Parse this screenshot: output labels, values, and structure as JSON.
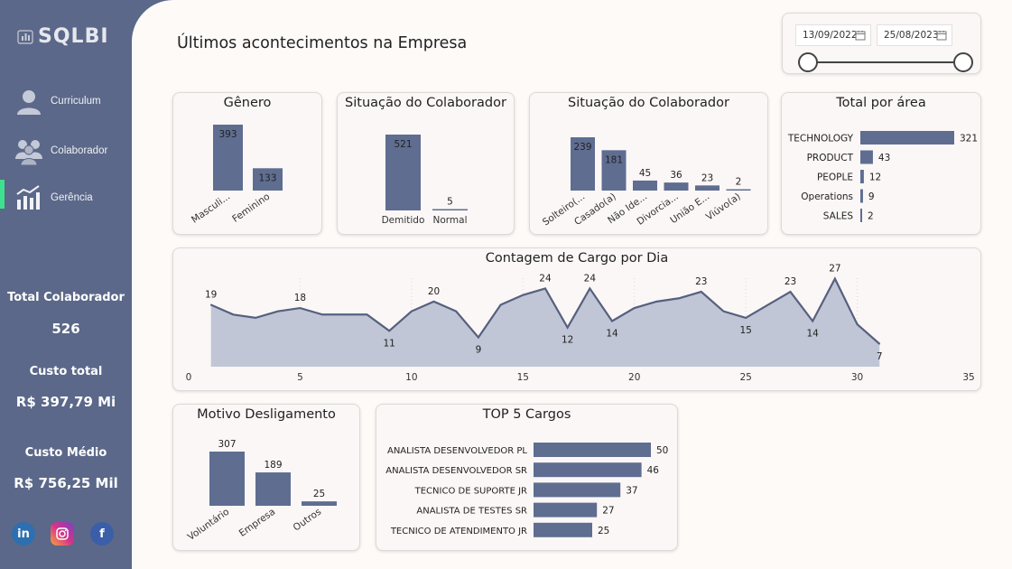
{
  "sidebar": {
    "logo": "SQLBI",
    "nav": [
      {
        "label": "Curriculum",
        "icon": "person-icon"
      },
      {
        "label": "Colaborador",
        "icon": "people-group-icon"
      },
      {
        "label": "Gerência",
        "icon": "bar-chart-icon"
      }
    ],
    "kpis": [
      {
        "label": "Total Colaborador",
        "value": "526"
      },
      {
        "label": "Custo total",
        "value": "R$ 397,79 Mi"
      },
      {
        "label": "Custo Médio",
        "value": "R$ 756,25 Mil"
      }
    ],
    "social": [
      {
        "icon": "linkedin-icon",
        "glyph": "in",
        "color": "#2d6fb0"
      },
      {
        "icon": "instagram-icon",
        "glyph": "",
        "color": "#d6338a"
      },
      {
        "icon": "facebook-icon",
        "glyph": "f",
        "color": "#3b5ea8"
      }
    ]
  },
  "header": {
    "title": "Últimos acontecimentos na Empresa"
  },
  "date_filter": {
    "start": "13/09/2022",
    "end": "25/08/2023"
  },
  "colors": {
    "bar": "#5f6d91",
    "sidebar": "#5b6889",
    "accent": "#3fe08d"
  },
  "chart_data": [
    {
      "id": "genero",
      "type": "bar",
      "title": "Gênero",
      "categories": [
        "Masculi...",
        "Feminino"
      ],
      "values": [
        393,
        133
      ]
    },
    {
      "id": "situacao1",
      "type": "bar",
      "title": "Situação do Colaborador",
      "categories": [
        "Demitido",
        "Normal"
      ],
      "values": [
        521,
        5
      ]
    },
    {
      "id": "situacao2",
      "type": "bar",
      "title": "Situação do Colaborador",
      "categories": [
        "Solteiro(...",
        "Casado(a)",
        "Não Ide...",
        "Divorcia...",
        "União E...",
        "Viúvo(a)"
      ],
      "values": [
        239,
        181,
        45,
        36,
        23,
        2
      ]
    },
    {
      "id": "area",
      "type": "bar",
      "orientation": "horizontal",
      "title": "Total por área",
      "categories": [
        "TECHNOLOGY",
        "PRODUCT",
        "PEOPLE",
        "Operations",
        "SALES"
      ],
      "values": [
        321,
        43,
        12,
        9,
        2
      ]
    },
    {
      "id": "cargo_dia",
      "type": "area",
      "title": "Contagem de Cargo por Dia",
      "x": [
        1,
        2,
        3,
        4,
        5,
        6,
        7,
        8,
        9,
        10,
        11,
        12,
        13,
        14,
        15,
        16,
        17,
        18,
        19,
        20,
        21,
        22,
        23,
        24,
        25,
        26,
        27,
        28,
        29,
        30,
        31
      ],
      "y": [
        19,
        16,
        15,
        17,
        18,
        16,
        16,
        16,
        11,
        17,
        20,
        17,
        9,
        19,
        22,
        24,
        12,
        24,
        14,
        18,
        20,
        21,
        23,
        17,
        15,
        19,
        23,
        14,
        27,
        13,
        7
      ],
      "labeled_x": [
        1,
        5,
        9,
        11,
        13,
        16,
        17,
        18,
        19,
        23,
        25,
        27,
        28,
        29,
        31
      ],
      "xticks": [
        0,
        5,
        10,
        15,
        20,
        25,
        30,
        35
      ],
      "xlim": [
        0,
        35
      ],
      "ylim": [
        0,
        28
      ]
    },
    {
      "id": "motivo",
      "type": "bar",
      "title": "Motivo Desligamento",
      "categories": [
        "Voluntário",
        "Empresa",
        "Outros"
      ],
      "values": [
        307,
        189,
        25
      ]
    },
    {
      "id": "top5",
      "type": "bar",
      "orientation": "horizontal",
      "title": "TOP 5 Cargos",
      "categories": [
        "ANALISTA DESENVOLVEDOR PL",
        "ANALISTA DESENVOLVEDOR SR",
        "TECNICO DE SUPORTE JR",
        "ANALISTA DE TESTES SR",
        "TECNICO DE ATENDIMENTO JR"
      ],
      "values": [
        50,
        46,
        37,
        27,
        25
      ]
    }
  ]
}
